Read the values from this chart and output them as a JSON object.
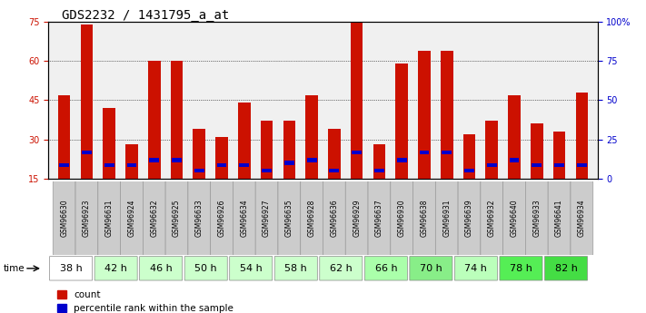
{
  "title": "GDS2232 / 1431795_a_at",
  "samples": [
    "GSM96630",
    "GSM96923",
    "GSM96631",
    "GSM96924",
    "GSM96632",
    "GSM96925",
    "GSM96633",
    "GSM96926",
    "GSM96634",
    "GSM96927",
    "GSM96635",
    "GSM96928",
    "GSM96636",
    "GSM96929",
    "GSM96637",
    "GSM96930",
    "GSM96638",
    "GSM96931",
    "GSM96639",
    "GSM96932",
    "GSM96640",
    "GSM96933",
    "GSM96641",
    "GSM96934"
  ],
  "counts": [
    47,
    74,
    42,
    28,
    60,
    60,
    34,
    31,
    44,
    37,
    37,
    47,
    34,
    75,
    28,
    59,
    64,
    64,
    32,
    37,
    47,
    36,
    33,
    48
  ],
  "percentiles": [
    20,
    25,
    20,
    20,
    22,
    22,
    18,
    20,
    20,
    18,
    21,
    22,
    18,
    25,
    18,
    22,
    25,
    25,
    18,
    20,
    22,
    20,
    20,
    20
  ],
  "time_groups": [
    "38 h",
    "42 h",
    "46 h",
    "50 h",
    "54 h",
    "58 h",
    "62 h",
    "66 h",
    "70 h",
    "74 h",
    "78 h",
    "82 h"
  ],
  "time_colors": [
    "#ffffff",
    "#ccffcc",
    "#ccffcc",
    "#ccffcc",
    "#ccffcc",
    "#ccffcc",
    "#ccffcc",
    "#aaffaa",
    "#88ee88",
    "#bbffbb",
    "#55ee55",
    "#44dd44"
  ],
  "bar_color": "#cc1100",
  "percentile_color": "#0000cc",
  "bg_color": "#ffffff",
  "plot_bg": "#f0f0f0",
  "ylim_left": [
    15,
    75
  ],
  "ylim_right": [
    0,
    100
  ],
  "yticks_left": [
    15,
    30,
    45,
    60,
    75
  ],
  "yticks_right": [
    0,
    25,
    50,
    75,
    100
  ],
  "ytick_labels_right": [
    "0",
    "25",
    "50",
    "75",
    "100%"
  ],
  "bar_width": 0.55,
  "title_fontsize": 10,
  "tick_fontsize": 7
}
